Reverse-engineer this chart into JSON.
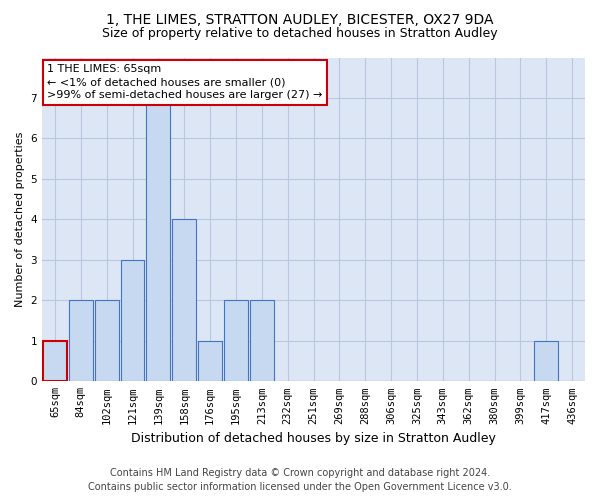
{
  "title1": "1, THE LIMES, STRATTON AUDLEY, BICESTER, OX27 9DA",
  "title2": "Size of property relative to detached houses in Stratton Audley",
  "xlabel": "Distribution of detached houses by size in Stratton Audley",
  "ylabel": "Number of detached properties",
  "categories": [
    "65sqm",
    "84sqm",
    "102sqm",
    "121sqm",
    "139sqm",
    "158sqm",
    "176sqm",
    "195sqm",
    "213sqm",
    "232sqm",
    "251sqm",
    "269sqm",
    "288sqm",
    "306sqm",
    "325sqm",
    "343sqm",
    "362sqm",
    "380sqm",
    "399sqm",
    "417sqm",
    "436sqm"
  ],
  "values": [
    1,
    2,
    2,
    3,
    7,
    4,
    1,
    2,
    2,
    0,
    0,
    0,
    0,
    0,
    0,
    0,
    0,
    0,
    0,
    1,
    0
  ],
  "bar_color": "#c6d9f0",
  "bar_edge_color": "#4472c4",
  "highlight_index": 0,
  "highlight_edge_color": "#cc0000",
  "annotation_box_text": "1 THE LIMES: 65sqm\n← <1% of detached houses are smaller (0)\n>99% of semi-detached houses are larger (27) →",
  "annotation_box_color": "#ffffff",
  "annotation_box_edge_color": "#cc0000",
  "footer1": "Contains HM Land Registry data © Crown copyright and database right 2024.",
  "footer2": "Contains public sector information licensed under the Open Government Licence v3.0.",
  "ylim": [
    0,
    8
  ],
  "yticks": [
    0,
    1,
    2,
    3,
    4,
    5,
    6,
    7,
    8
  ],
  "background_color": "#ffffff",
  "plot_bg_color": "#dce6f5",
  "grid_color": "#b8c8e0",
  "title1_fontsize": 10,
  "title2_fontsize": 9,
  "xlabel_fontsize": 9,
  "ylabel_fontsize": 8,
  "tick_fontsize": 7.5,
  "annotation_fontsize": 8,
  "footer_fontsize": 7
}
